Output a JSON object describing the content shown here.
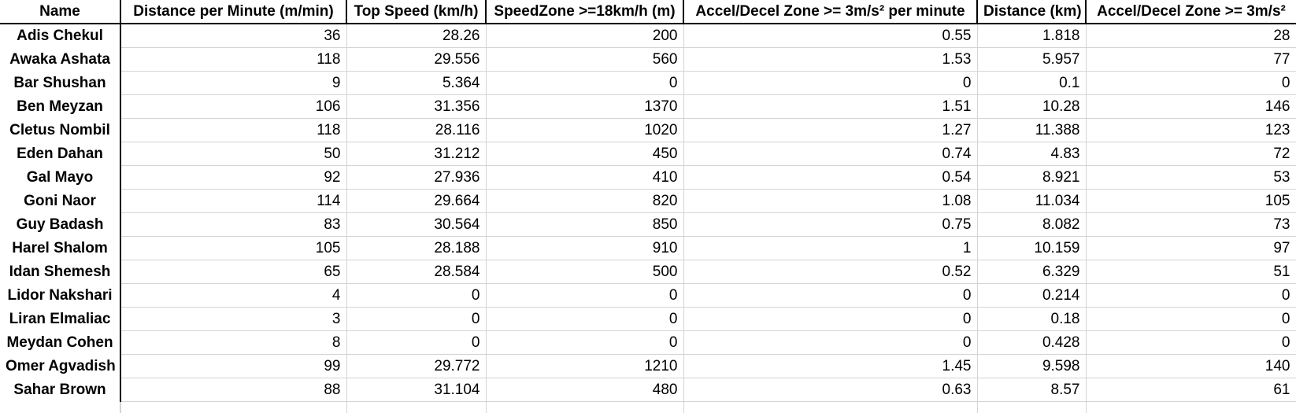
{
  "table": {
    "headers": [
      "Name",
      "Distance per Minute (m/min)",
      "Top Speed (km/h)",
      "SpeedZone >=18km/h (m)",
      "Accel/Decel Zone >= 3m/s² per minute",
      "Distance (km)",
      "Accel/Decel Zone >= 3m/s²"
    ],
    "rows": [
      [
        "Adis Chekul",
        "36",
        "28.26",
        "200",
        "0.55",
        "1.818",
        "28"
      ],
      [
        "Awaka Ashata",
        "118",
        "29.556",
        "560",
        "1.53",
        "5.957",
        "77"
      ],
      [
        "Bar Shushan",
        "9",
        "5.364",
        "0",
        "0",
        "0.1",
        "0"
      ],
      [
        "Ben Meyzan",
        "106",
        "31.356",
        "1370",
        "1.51",
        "10.28",
        "146"
      ],
      [
        "Cletus Nombil",
        "118",
        "28.116",
        "1020",
        "1.27",
        "11.388",
        "123"
      ],
      [
        "Eden Dahan",
        "50",
        "31.212",
        "450",
        "0.74",
        "4.83",
        "72"
      ],
      [
        "Gal Mayo",
        "92",
        "27.936",
        "410",
        "0.54",
        "8.921",
        "53"
      ],
      [
        "Goni Naor",
        "114",
        "29.664",
        "820",
        "1.08",
        "11.034",
        "105"
      ],
      [
        "Guy Badash",
        "83",
        "30.564",
        "850",
        "0.75",
        "8.082",
        "73"
      ],
      [
        "Harel Shalom",
        "105",
        "28.188",
        "910",
        "1",
        "10.159",
        "97"
      ],
      [
        "Idan Shemesh",
        "65",
        "28.584",
        "500",
        "0.52",
        "6.329",
        "51"
      ],
      [
        "Lidor Nakshari",
        "4",
        "0",
        "0",
        "0",
        "0.214",
        "0"
      ],
      [
        "Liran Elmaliac",
        "3",
        "0",
        "0",
        "0",
        "0.18",
        "0"
      ],
      [
        "Meydan Cohen",
        "8",
        "0",
        "0",
        "0",
        "0.428",
        "0"
      ],
      [
        "Omer Agvadish",
        "99",
        "29.772",
        "1210",
        "1.45",
        "9.598",
        "140"
      ],
      [
        "Sahar Brown",
        "88",
        "31.104",
        "480",
        "0.63",
        "8.57",
        "61"
      ]
    ]
  }
}
